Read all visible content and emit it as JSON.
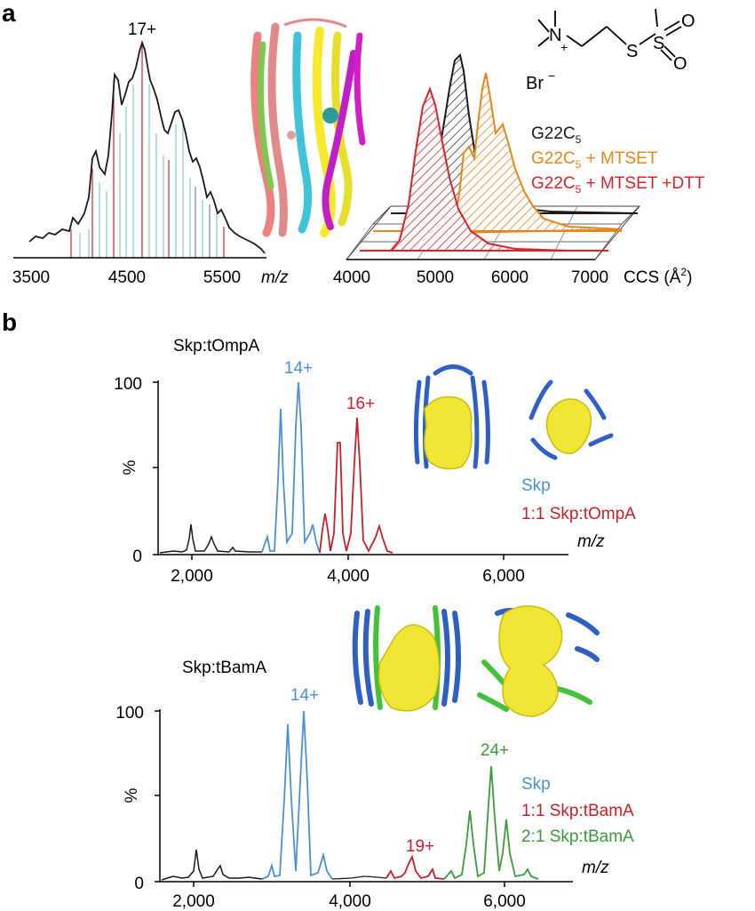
{
  "panel_a": {
    "label": "a",
    "spectrum": {
      "peak_label": "17+",
      "xticks": [
        "3500",
        "4500",
        "5500"
      ],
      "xunit": "m/z"
    },
    "structure_icon": "multicolor-helix-protein",
    "reagent": {
      "n_plus": "N",
      "plus": "+",
      "s1": "S",
      "s2": "S",
      "o1": "O",
      "o2": "O",
      "counterion": "Br",
      "minus": "−"
    },
    "ccs_plot": {
      "legend": [
        {
          "base": "G22C",
          "sub": "5",
          "suffix": "",
          "color": "#1a1a1a"
        },
        {
          "base": "G22C",
          "sub": "5",
          "suffix": " + MTSET",
          "color": "#e8841c"
        },
        {
          "base": "G22C",
          "sub": "5",
          "suffix": " + MTSET +DTT",
          "color": "#d9232a"
        }
      ],
      "xticks": [
        "4000",
        "5000",
        "6000",
        "7000"
      ],
      "xunit_pre": "CCS (Å",
      "xunit_sup": "2",
      "xunit_post": ")"
    }
  },
  "panel_b": {
    "label": "b",
    "colors": {
      "skp": "#4a90d9",
      "one_to_one": "#c8202a",
      "two_to_one": "#3c9a3c"
    },
    "plot1": {
      "title": "Skp:tOmpA",
      "yticks": [
        "100",
        "0"
      ],
      "ylabel": "%",
      "xticks": [
        "2,000",
        "4,000",
        "6,000"
      ],
      "xunit": "m/z",
      "charge_skp": "14+",
      "charge_complex": "16+",
      "legend": [
        "Skp",
        "1:1 Skp:tOmpA"
      ],
      "structure_icons": [
        "skp-tompa-side-view",
        "skp-tompa-top-view"
      ]
    },
    "plot2": {
      "title": "Skp:tBamA",
      "yticks": [
        "100",
        "0"
      ],
      "ylabel": "%",
      "xticks": [
        "2,000",
        "4,000",
        "6,000"
      ],
      "xunit": "m/z",
      "charge_skp": "14+",
      "charge_11": "19+",
      "charge_21": "24+",
      "legend": [
        "Skp",
        "1:1 Skp:tBamA",
        "2:1 Skp:tBamA"
      ],
      "structure_icons": [
        "skp-tbama-side-view",
        "skp-tbama-2to1-view"
      ]
    }
  }
}
